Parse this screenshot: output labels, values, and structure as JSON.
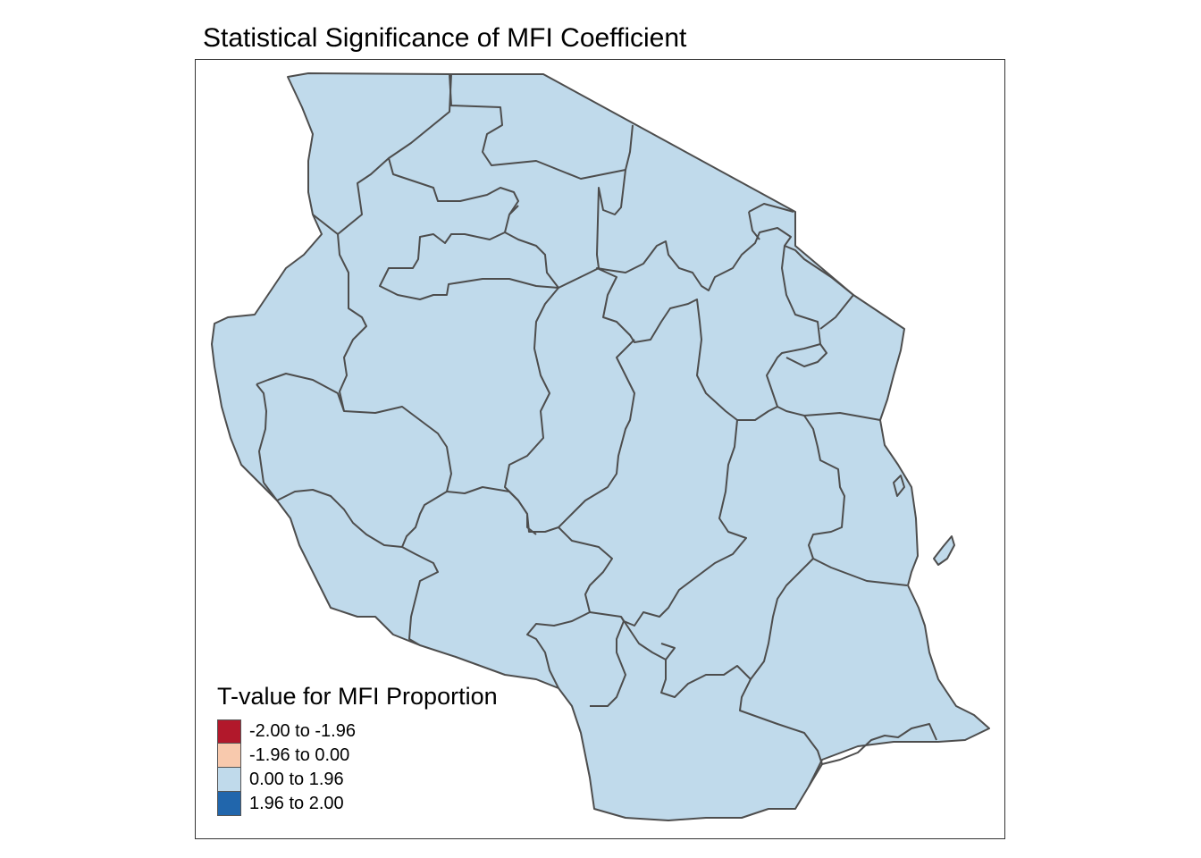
{
  "map": {
    "title": "Statistical Significance of MFI Coefficient",
    "fill_color": "#c0daeb",
    "border_color": "#4d4d4d",
    "legend": {
      "title": "T-value for MFI Proportion",
      "items": [
        {
          "label": "-2.00 to -1.96",
          "color": "#b2182b"
        },
        {
          "label": "-1.96 to 0.00",
          "color": "#f8c9ad"
        },
        {
          "label": "0.00 to 1.96",
          "color": "#c0daeb"
        },
        {
          "label": "1.96 to 2.00",
          "color": "#2166ac"
        }
      ]
    }
  }
}
